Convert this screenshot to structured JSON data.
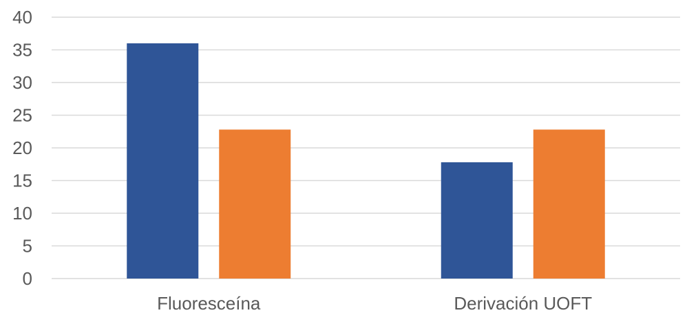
{
  "chart_data": {
    "type": "bar",
    "title": "",
    "xlabel": "",
    "ylabel": "",
    "categories": [
      "Fluoresceína",
      "Derivación UOFT"
    ],
    "series": [
      {
        "values": [
          36,
          17.8
        ],
        "color": "#2F5597"
      },
      {
        "values": [
          22.8,
          22.8
        ],
        "color": "#ED7D31"
      }
    ],
    "ylim": [
      0,
      40
    ],
    "yticks": [
      0,
      5,
      10,
      15,
      20,
      25,
      30,
      35,
      40
    ],
    "grid": true,
    "gridColor": "#D9D9D9",
    "legend": "none"
  }
}
